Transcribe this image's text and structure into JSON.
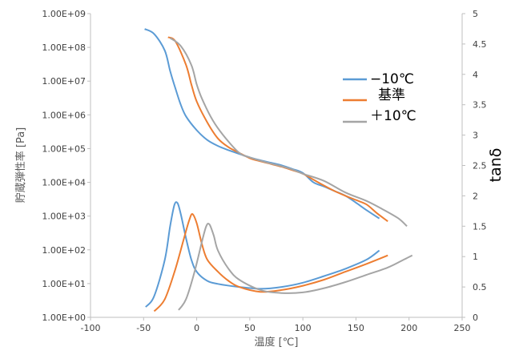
{
  "chart_data": {
    "type": "line",
    "xlabel": "温度 [℃]",
    "ylabel": "貯蔵弾性率 [Pa]",
    "y2label": "tanδ",
    "xlim": [
      -100,
      250
    ],
    "x_ticks": [
      "-100",
      "-50",
      "0",
      "50",
      "100",
      "150",
      "200",
      "250"
    ],
    "ylim_log": [
      1,
      1000000000
    ],
    "y_ticks": [
      "1.00E+00",
      "1.00E+01",
      "1.00E+02",
      "1.00E+03",
      "1.00E+04",
      "1.00E+05",
      "1.00E+06",
      "1.00E+07",
      "1.00E+08",
      "1.00E+09"
    ],
    "y2lim": [
      0,
      5
    ],
    "y2_ticks": [
      "0",
      "0.5",
      "1",
      "1.5",
      "2",
      "2.5",
      "3",
      "3.5",
      "4",
      "4.5",
      "5"
    ],
    "grid": false,
    "legend_position": "top-right",
    "series": [
      {
        "name": "−10℃",
        "color": "#5B9BD5",
        "storage_modulus": [
          [
            -49,
            350000000
          ],
          [
            -40,
            250000000
          ],
          [
            -30,
            80000000
          ],
          [
            -25,
            20000000
          ],
          [
            -20,
            6000000
          ],
          [
            -15,
            2000000
          ],
          [
            -10,
            900000
          ],
          [
            0,
            350000
          ],
          [
            10,
            180000
          ],
          [
            20,
            120000
          ],
          [
            30,
            90000
          ],
          [
            40,
            70000
          ],
          [
            50,
            55000
          ],
          [
            60,
            45000
          ],
          [
            70,
            38000
          ],
          [
            80,
            32000
          ],
          [
            90,
            25000
          ],
          [
            100,
            19000
          ],
          [
            110,
            10000
          ],
          [
            120,
            7500
          ],
          [
            130,
            5500
          ],
          [
            140,
            4000
          ],
          [
            150,
            2500
          ],
          [
            160,
            1500
          ],
          [
            172,
            850
          ]
        ],
        "tan_delta": [
          [
            -48,
            0.17
          ],
          [
            -40,
            0.35
          ],
          [
            -30,
            0.95
          ],
          [
            -25,
            1.5
          ],
          [
            -21,
            1.85
          ],
          [
            -18,
            1.88
          ],
          [
            -15,
            1.7
          ],
          [
            -10,
            1.3
          ],
          [
            -5,
            0.95
          ],
          [
            0,
            0.75
          ],
          [
            10,
            0.6
          ],
          [
            20,
            0.55
          ],
          [
            40,
            0.5
          ],
          [
            60,
            0.47
          ],
          [
            80,
            0.5
          ],
          [
            100,
            0.57
          ],
          [
            120,
            0.68
          ],
          [
            140,
            0.8
          ],
          [
            160,
            0.95
          ],
          [
            172,
            1.1
          ]
        ]
      },
      {
        "name": "基準",
        "color": "#ED7D31",
        "storage_modulus": [
          [
            -27,
            200000000
          ],
          [
            -20,
            150000000
          ],
          [
            -10,
            30000000
          ],
          [
            -5,
            8000000
          ],
          [
            0,
            2500000
          ],
          [
            10,
            600000
          ],
          [
            20,
            200000
          ],
          [
            30,
            110000
          ],
          [
            40,
            75000
          ],
          [
            50,
            52000
          ],
          [
            60,
            42000
          ],
          [
            70,
            35000
          ],
          [
            80,
            29000
          ],
          [
            90,
            23000
          ],
          [
            100,
            18000
          ],
          [
            110,
            12000
          ],
          [
            120,
            8000
          ],
          [
            130,
            5500
          ],
          [
            140,
            4000
          ],
          [
            150,
            3000
          ],
          [
            160,
            2200
          ],
          [
            170,
            1200
          ],
          [
            180,
            700
          ]
        ],
        "tan_delta": [
          [
            -40,
            0.1
          ],
          [
            -30,
            0.3
          ],
          [
            -20,
            0.8
          ],
          [
            -12,
            1.3
          ],
          [
            -7,
            1.6
          ],
          [
            -4,
            1.7
          ],
          [
            0,
            1.55
          ],
          [
            5,
            1.2
          ],
          [
            10,
            0.95
          ],
          [
            20,
            0.75
          ],
          [
            30,
            0.6
          ],
          [
            40,
            0.5
          ],
          [
            60,
            0.42
          ],
          [
            80,
            0.45
          ],
          [
            100,
            0.52
          ],
          [
            120,
            0.62
          ],
          [
            140,
            0.75
          ],
          [
            160,
            0.88
          ],
          [
            180,
            1.02
          ]
        ]
      },
      {
        "name": "＋10℃",
        "color": "#A5A5A5",
        "storage_modulus": [
          [
            -25,
            190000000
          ],
          [
            -15,
            110000000
          ],
          [
            -5,
            30000000
          ],
          [
            0,
            8000000
          ],
          [
            5,
            3000000
          ],
          [
            15,
            700000
          ],
          [
            25,
            250000
          ],
          [
            40,
            75000
          ],
          [
            50,
            55000
          ],
          [
            60,
            44000
          ],
          [
            70,
            36000
          ],
          [
            80,
            30000
          ],
          [
            90,
            24000
          ],
          [
            100,
            18000
          ],
          [
            120,
            11000
          ],
          [
            140,
            5000
          ],
          [
            160,
            2800
          ],
          [
            175,
            1600
          ],
          [
            190,
            850
          ],
          [
            198,
            500
          ]
        ],
        "tan_delta": [
          [
            -17,
            0.12
          ],
          [
            -10,
            0.3
          ],
          [
            -2,
            0.75
          ],
          [
            5,
            1.25
          ],
          [
            9,
            1.5
          ],
          [
            12,
            1.53
          ],
          [
            16,
            1.35
          ],
          [
            20,
            1.1
          ],
          [
            30,
            0.8
          ],
          [
            40,
            0.62
          ],
          [
            60,
            0.45
          ],
          [
            80,
            0.4
          ],
          [
            100,
            0.41
          ],
          [
            120,
            0.48
          ],
          [
            140,
            0.58
          ],
          [
            160,
            0.7
          ],
          [
            180,
            0.82
          ],
          [
            195,
            0.95
          ],
          [
            203,
            1.02
          ]
        ]
      }
    ]
  }
}
